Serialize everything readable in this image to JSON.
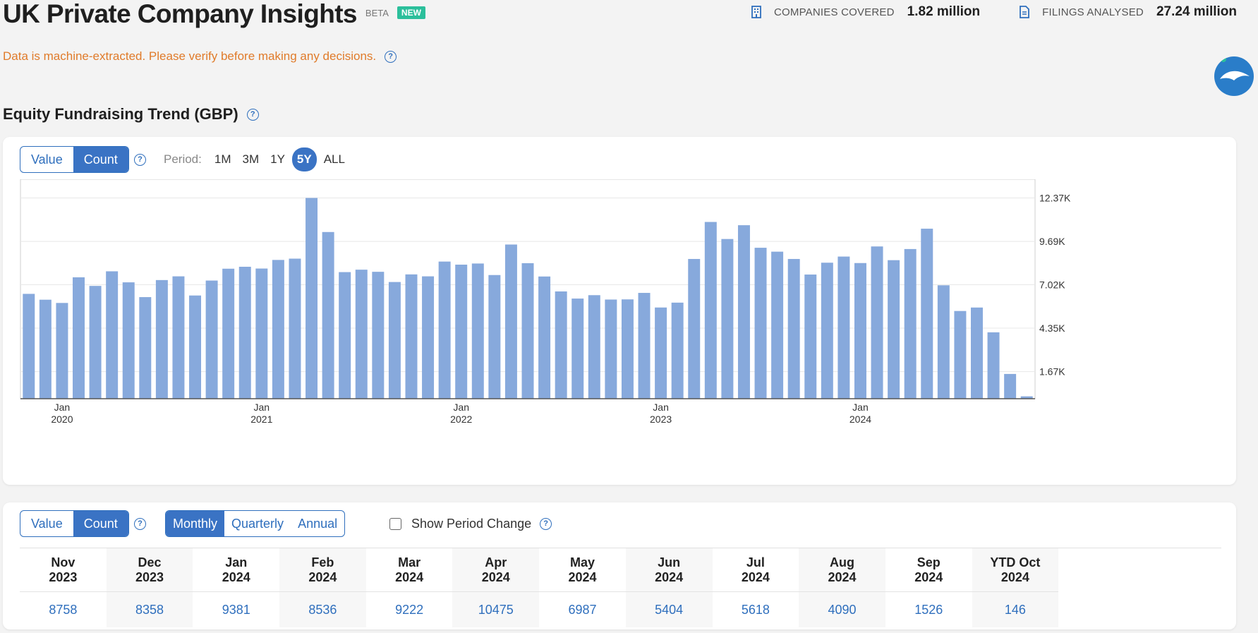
{
  "header": {
    "title": "UK Private Company Insights",
    "beta": "BETA",
    "new_badge": "NEW"
  },
  "stats": {
    "companies_label": "COMPANIES COVERED",
    "companies_value": "1.82 million",
    "filings_label": "FILINGS ANALYSED",
    "filings_value": "27.24 million"
  },
  "disclaimer": "Data is machine-extracted. Please verify before making any decisions.",
  "section_title": "Equity Fundraising Trend (GBP)",
  "chart_controls": {
    "value_label": "Value",
    "count_label": "Count",
    "period_label": "Period:",
    "periods": [
      "1M",
      "3M",
      "1Y",
      "5Y",
      "ALL"
    ],
    "active_period": "5Y"
  },
  "chart_data": {
    "type": "bar",
    "x_ticks": [
      {
        "month": "Jan",
        "year": "2020"
      },
      {
        "month": "Jan",
        "year": "2021"
      },
      {
        "month": "Jan",
        "year": "2022"
      },
      {
        "month": "Jan",
        "year": "2023"
      },
      {
        "month": "Jan",
        "year": "2024"
      }
    ],
    "y_ticks": [
      "12.37K",
      "9.69K",
      "7.02K",
      "4.35K",
      "1.67K"
    ],
    "y_tick_values": [
      12370,
      9690,
      7020,
      4350,
      1670
    ],
    "ylim": [
      0,
      13000
    ],
    "bar_color": "#87a9dc",
    "values": [
      6460,
      6100,
      5900,
      7480,
      6950,
      7850,
      7170,
      6260,
      7310,
      7540,
      6360,
      7280,
      8010,
      8130,
      8020,
      8550,
      8630,
      12370,
      10270,
      7800,
      7950,
      7820,
      7190,
      7660,
      7540,
      8450,
      8260,
      8330,
      7620,
      9500,
      8350,
      7530,
      6610,
      6170,
      6380,
      6110,
      6120,
      6520,
      5620,
      5920,
      8610,
      10890,
      9840,
      10690,
      9300,
      9060,
      8610,
      7650,
      8380,
      8758,
      8358,
      9381,
      8536,
      9222,
      10475,
      6987,
      5404,
      5618,
      4090,
      1526,
      146
    ]
  },
  "table_controls": {
    "value_label": "Value",
    "count_label": "Count",
    "granularities": [
      "Monthly",
      "Quarterly",
      "Annual"
    ],
    "active_granularity": "Monthly",
    "show_change_label": "Show Period Change"
  },
  "table": {
    "columns": [
      {
        "line1": "Nov",
        "line2": "2023",
        "value": "8758"
      },
      {
        "line1": "Dec",
        "line2": "2023",
        "value": "8358"
      },
      {
        "line1": "Jan",
        "line2": "2024",
        "value": "9381"
      },
      {
        "line1": "Feb",
        "line2": "2024",
        "value": "8536"
      },
      {
        "line1": "Mar",
        "line2": "2024",
        "value": "9222"
      },
      {
        "line1": "Apr",
        "line2": "2024",
        "value": "10475"
      },
      {
        "line1": "May",
        "line2": "2024",
        "value": "6987"
      },
      {
        "line1": "Jun",
        "line2": "2024",
        "value": "5404"
      },
      {
        "line1": "Jul",
        "line2": "2024",
        "value": "5618"
      },
      {
        "line1": "Aug",
        "line2": "2024",
        "value": "4090"
      },
      {
        "line1": "Sep",
        "line2": "2024",
        "value": "1526"
      },
      {
        "line1": "YTD Oct",
        "line2": "2024",
        "value": "146"
      }
    ]
  }
}
